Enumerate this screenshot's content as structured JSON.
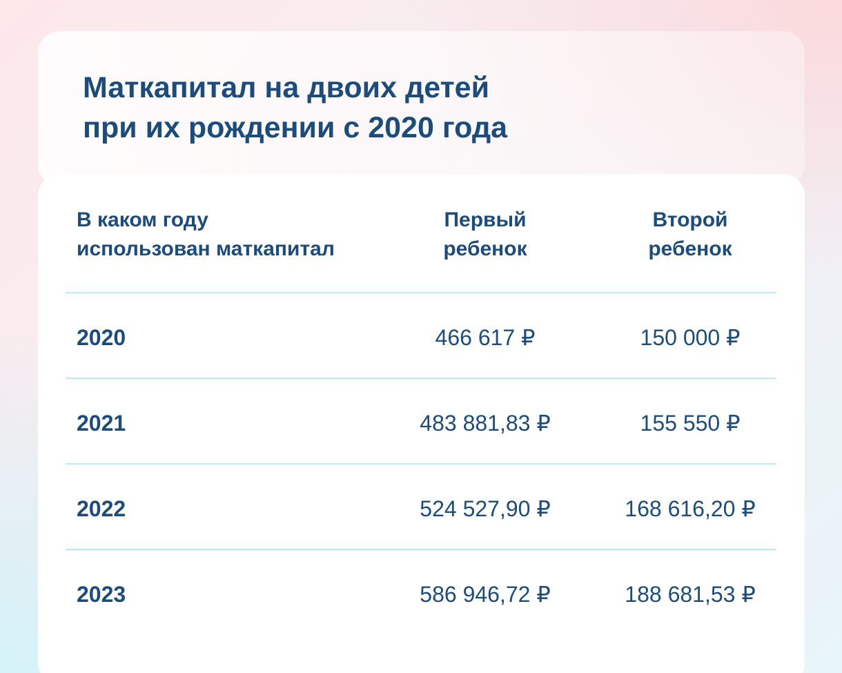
{
  "title": {
    "line1": "Маткапитал на двоих детей",
    "line2": "при их рождении с 2020 года"
  },
  "table": {
    "headers": {
      "year": [
        "В каком году",
        "использован маткапитал"
      ],
      "first": [
        "Первый",
        "ребенок"
      ],
      "second": [
        "Второй",
        "ребенок"
      ]
    },
    "rows": [
      {
        "year": "2020",
        "first": "466 617 ₽",
        "second": "150 000 ₽"
      },
      {
        "year": "2021",
        "first": "483 881,83 ₽",
        "second": "155 550 ₽"
      },
      {
        "year": "2022",
        "first": "524 527,90 ₽",
        "second": "168 616,20 ₽"
      },
      {
        "year": "2023",
        "first": "586 946,72 ₽",
        "second": "188 681,53 ₽"
      }
    ]
  },
  "colors": {
    "text": "#1b4c7c",
    "divider": "#bfe8f1",
    "card": "#ffffff"
  },
  "chart_data": {
    "type": "table",
    "title": "Маткапитал на двоих детей при их рождении с 2020 года",
    "columns": [
      "В каком году использован маткапитал",
      "Первый ребенок",
      "Второй ребенок"
    ],
    "categories": [
      "2020",
      "2021",
      "2022",
      "2023"
    ],
    "series": [
      {
        "name": "Первый ребенок",
        "values": [
          466617,
          483881.83,
          524527.9,
          586946.72
        ]
      },
      {
        "name": "Второй ребенок",
        "values": [
          150000,
          155550,
          168616.2,
          188681.53
        ]
      }
    ],
    "unit": "₽"
  }
}
